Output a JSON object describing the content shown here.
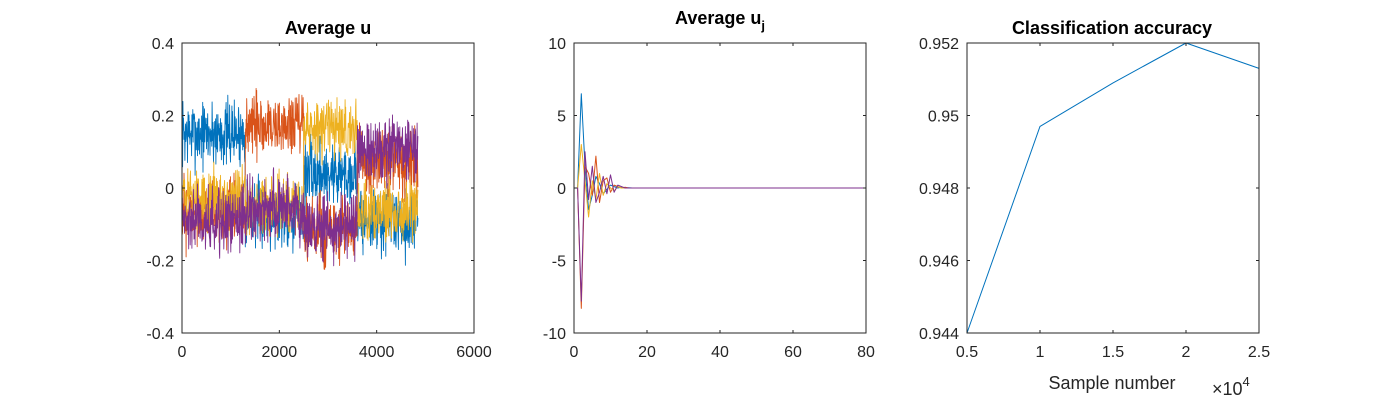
{
  "figure": {
    "background": "#ffffff",
    "colors": [
      "#0072BD",
      "#D95319",
      "#EDB120",
      "#7E2F8E"
    ]
  },
  "chart_data": [
    {
      "type": "line",
      "title": "Average u",
      "title_sub": "",
      "xlabel": "",
      "ylabel": "",
      "xlim": [
        0,
        6000
      ],
      "ylim": [
        -0.4,
        0.4
      ],
      "xticks": [
        0,
        2000,
        4000,
        6000
      ],
      "xtick_labels": [
        "0",
        "2000",
        "4000",
        "6000"
      ],
      "yticks": [
        -0.4,
        -0.2,
        0,
        0.2,
        0.4
      ],
      "ytick_labels": [
        "-0.4",
        "-0.2",
        "0",
        "0.2",
        "0.4"
      ],
      "grid": false,
      "noise_seed": 7,
      "series": [
        {
          "color": "#0072BD",
          "noise": 0.045,
          "segments": [
            [
              0,
              1300,
              0.15
            ],
            [
              1300,
              2500,
              -0.07
            ],
            [
              2500,
              3600,
              0.04
            ],
            [
              3600,
              4850,
              -0.09
            ]
          ]
        },
        {
          "color": "#D95319",
          "noise": 0.045,
          "segments": [
            [
              0,
              1300,
              -0.07
            ],
            [
              1300,
              2500,
              0.17
            ],
            [
              2500,
              3600,
              -0.12
            ],
            [
              3600,
              4850,
              0.07
            ]
          ]
        },
        {
          "color": "#EDB120",
          "noise": 0.04,
          "segments": [
            [
              0,
              1300,
              -0.03
            ],
            [
              1300,
              2500,
              -0.05
            ],
            [
              2500,
              3600,
              0.16
            ],
            [
              3600,
              4850,
              -0.06
            ]
          ]
        },
        {
          "color": "#7E2F8E",
          "noise": 0.045,
          "segments": [
            [
              0,
              1300,
              -0.09
            ],
            [
              1300,
              2500,
              -0.06
            ],
            [
              2500,
              3600,
              -0.11
            ],
            [
              3600,
              4850,
              0.11
            ]
          ]
        }
      ]
    },
    {
      "type": "line",
      "title": "Average u",
      "title_sub": "j",
      "xlabel": "",
      "ylabel": "",
      "xlim": [
        0,
        80
      ],
      "ylim": [
        -10,
        10
      ],
      "xticks": [
        0,
        20,
        40,
        60,
        80
      ],
      "xtick_labels": [
        "0",
        "20",
        "40",
        "60",
        "80"
      ],
      "yticks": [
        -10,
        -5,
        0,
        5,
        10
      ],
      "ytick_labels": [
        "-10",
        "-5",
        "0",
        "5",
        "10"
      ],
      "grid": false,
      "series": [
        {
          "color": "#0072BD",
          "x": [
            0,
            1,
            2,
            3,
            4,
            5,
            6,
            7,
            8,
            9,
            10,
            11,
            12,
            13,
            14,
            15,
            16,
            18,
            20,
            25,
            30,
            40,
            60,
            80
          ],
          "y": [
            0,
            0,
            6.5,
            1.5,
            -1.5,
            -0.5,
            0.8,
            0.3,
            -0.4,
            -0.1,
            0.2,
            0.1,
            0,
            0.05,
            0,
            0.02,
            0,
            0,
            0,
            0,
            0,
            0,
            0,
            0
          ]
        },
        {
          "color": "#D95319",
          "x": [
            0,
            1,
            2,
            3,
            4,
            5,
            6,
            7,
            8,
            9,
            10,
            11,
            12,
            13,
            14,
            15,
            16,
            18,
            20,
            25,
            30,
            40,
            60,
            80
          ],
          "y": [
            0,
            0,
            -8.3,
            1.5,
            1.0,
            -0.5,
            2.2,
            -1.0,
            0.5,
            0.7,
            -0.3,
            0.2,
            0.1,
            0,
            0.05,
            0,
            0,
            0,
            0,
            0,
            0,
            0,
            0,
            0
          ]
        },
        {
          "color": "#EDB120",
          "x": [
            0,
            1,
            2,
            3,
            4,
            5,
            6,
            7,
            8,
            9,
            10,
            11,
            12,
            13,
            14,
            15,
            16,
            18,
            20,
            25,
            30,
            40,
            60,
            80
          ],
          "y": [
            0,
            0,
            3.0,
            0.5,
            -2.0,
            0.5,
            -0.8,
            1.0,
            -0.5,
            0.3,
            0,
            -0.2,
            0.1,
            0,
            0,
            0,
            0,
            0,
            0,
            0,
            0,
            0,
            0,
            0
          ]
        },
        {
          "color": "#7E2F8E",
          "x": [
            0,
            1,
            2,
            3,
            4,
            5,
            6,
            7,
            8,
            9,
            10,
            11,
            12,
            13,
            14,
            15,
            16,
            18,
            20,
            25,
            30,
            40,
            60,
            80
          ],
          "y": [
            0,
            0,
            -7.8,
            2.5,
            -0.8,
            1.5,
            -1.0,
            -0.3,
            0.8,
            -0.4,
            0.9,
            -0.3,
            0.2,
            0.1,
            0,
            0,
            0,
            0,
            0,
            0,
            0,
            0,
            0,
            0
          ]
        }
      ]
    },
    {
      "type": "line",
      "title": "Classification accuracy",
      "title_sub": "",
      "xlabel": "Sample number",
      "ylabel": "",
      "x_exponent_base": "×10",
      "x_exponent_power": "4",
      "xlim": [
        0.5,
        2.5
      ],
      "ylim": [
        0.944,
        0.952
      ],
      "xticks": [
        0.5,
        1,
        1.5,
        2,
        2.5
      ],
      "xtick_labels": [
        "0.5",
        "1",
        "1.5",
        "2",
        "2.5"
      ],
      "yticks": [
        0.944,
        0.946,
        0.948,
        0.95,
        0.952
      ],
      "ytick_labels": [
        "0.944",
        "0.946",
        "0.948",
        "0.95",
        "0.952"
      ],
      "grid": false,
      "series": [
        {
          "color": "#0072BD",
          "x": [
            0.5,
            1,
            1.5,
            2,
            2.5
          ],
          "y": [
            0.944,
            0.9497,
            0.9509,
            0.952,
            0.9513
          ]
        }
      ]
    }
  ]
}
